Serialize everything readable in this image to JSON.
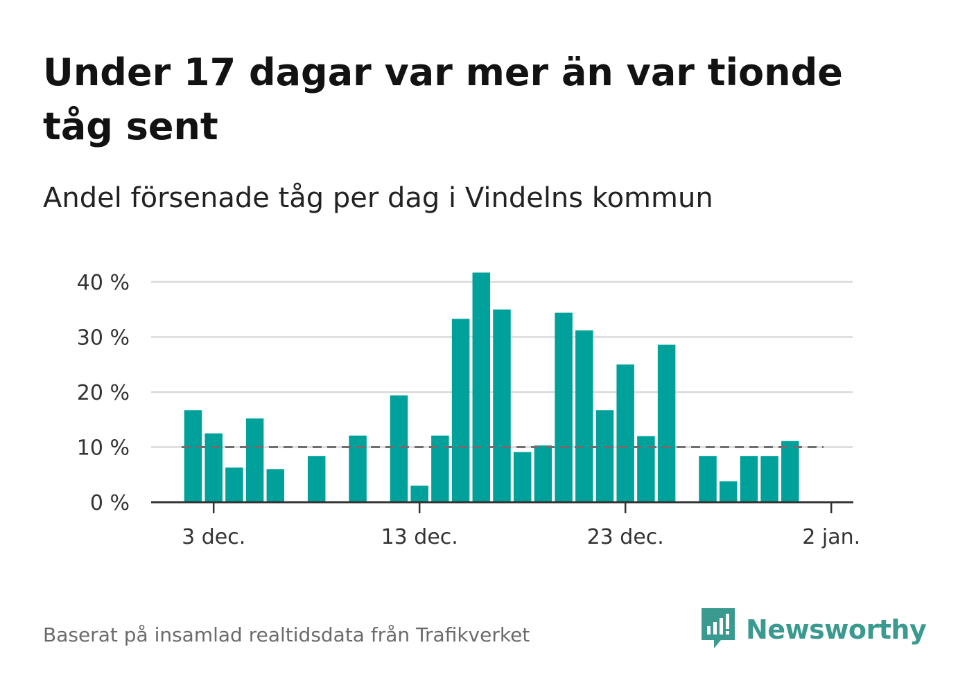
{
  "header": {
    "title": "Under 17 dagar var mer än var tionde tåg sent",
    "subtitle": "Andel försenade tåg per dag i Vindelns kommun"
  },
  "footer": {
    "source": "Baserat på insamlad realtidsdata från Trafikverket",
    "brand": "Newsworthy"
  },
  "colors": {
    "bar": "#00a19a",
    "reference_line": "#6e6e6e",
    "grid": "#d9d9d9",
    "axis": "#333333",
    "brand": "#3a9a8f"
  },
  "chart_data": {
    "type": "bar",
    "title": "Under 17 dagar var mer än var tionde tåg sent",
    "subtitle": "Andel försenade tåg per dag i Vindelns kommun",
    "x_unit": "day",
    "x": [
      "2023-12-02",
      "2023-12-03",
      "2023-12-04",
      "2023-12-05",
      "2023-12-06",
      "2023-12-07",
      "2023-12-08",
      "2023-12-09",
      "2023-12-10",
      "2023-12-11",
      "2023-12-12",
      "2023-12-13",
      "2023-12-14",
      "2023-12-15",
      "2023-12-16",
      "2023-12-17",
      "2023-12-18",
      "2023-12-19",
      "2023-12-20",
      "2023-12-21",
      "2023-12-22",
      "2023-12-23",
      "2023-12-24",
      "2023-12-25",
      "2023-12-26",
      "2023-12-27",
      "2023-12-28",
      "2023-12-29",
      "2023-12-30",
      "2023-12-31",
      "2024-01-01"
    ],
    "values": [
      16.7,
      12.5,
      6.3,
      15.2,
      6.0,
      null,
      8.4,
      null,
      12.1,
      null,
      19.4,
      3.0,
      12.1,
      33.3,
      41.7,
      35.0,
      9.1,
      10.3,
      34.4,
      31.2,
      16.7,
      25.0,
      12.0,
      28.6,
      null,
      8.4,
      3.8,
      8.4,
      8.4,
      11.1,
      null
    ],
    "reference_line": {
      "value": 10,
      "style": "dashed"
    },
    "ylim": [
      0,
      42
    ],
    "y_ticks": [
      {
        "value": 0,
        "label": "0 %"
      },
      {
        "value": 10,
        "label": "10 %"
      },
      {
        "value": 20,
        "label": "20 %"
      },
      {
        "value": 30,
        "label": "30 %"
      },
      {
        "value": 40,
        "label": "40 %"
      }
    ],
    "x_ticks": [
      {
        "date": "2023-12-03",
        "label": "3 dec."
      },
      {
        "date": "2023-12-13",
        "label": "13 dec."
      },
      {
        "date": "2023-12-23",
        "label": "23 dec."
      },
      {
        "date": "2024-01-02",
        "label": "2 jan."
      }
    ],
    "grid": true,
    "legend": "none"
  }
}
